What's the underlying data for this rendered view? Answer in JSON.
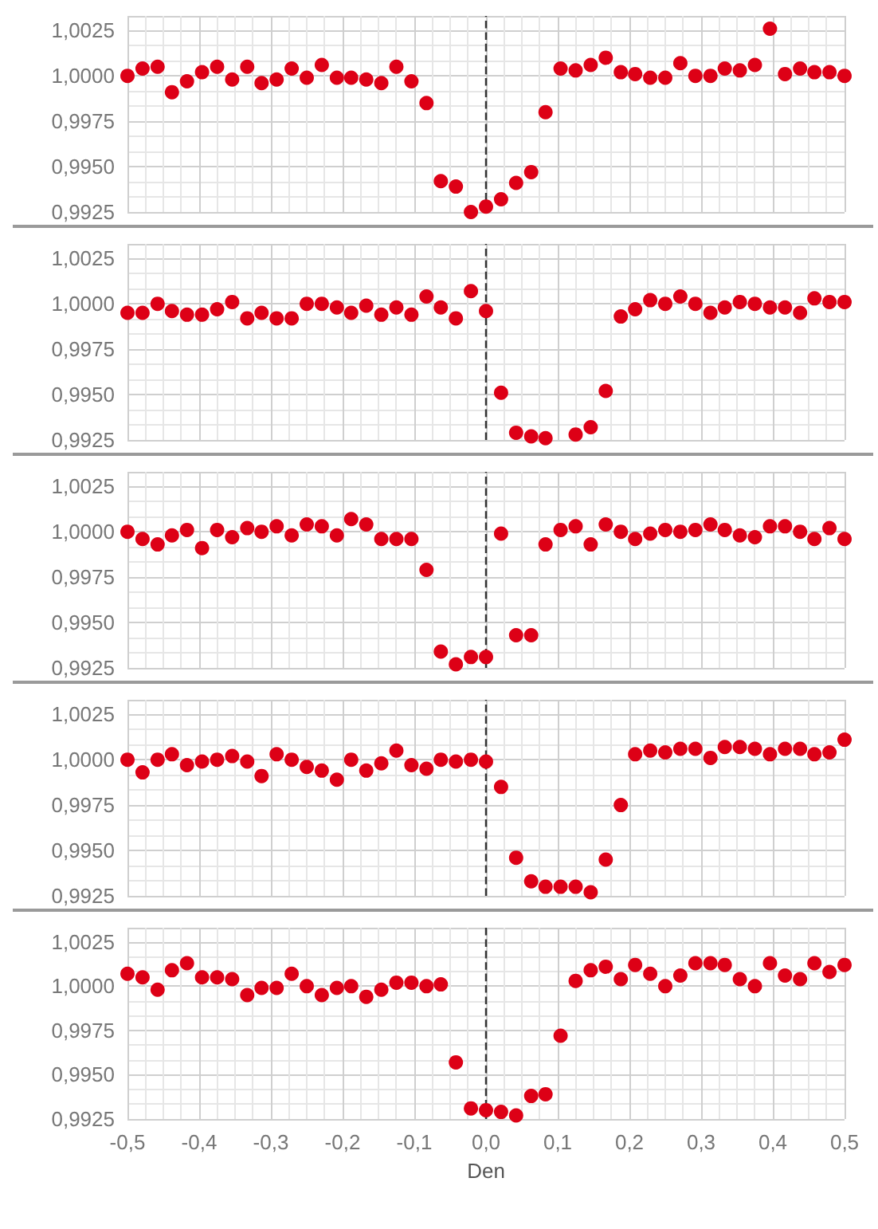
{
  "chart_data": [
    {
      "type": "scatter",
      "x": [
        -0.5,
        -0.479,
        -0.458,
        -0.438,
        -0.417,
        -0.396,
        -0.375,
        -0.354,
        -0.333,
        -0.313,
        -0.292,
        -0.271,
        -0.25,
        -0.229,
        -0.208,
        -0.188,
        -0.167,
        -0.146,
        -0.125,
        -0.104,
        -0.083,
        -0.063,
        -0.042,
        -0.021,
        0,
        0.021,
        0.042,
        0.063,
        0.083,
        0.104,
        0.125,
        0.146,
        0.167,
        0.188,
        0.208,
        0.229,
        0.25,
        0.271,
        0.292,
        0.313,
        0.333,
        0.354,
        0.375,
        0.396,
        0.417,
        0.438,
        0.458,
        0.479,
        0.5
      ],
      "series": [
        {
          "color": "#dd0016",
          "values": [
            1.0,
            1.0004,
            1.0005,
            0.9991,
            0.9997,
            1.0002,
            1.0005,
            0.9998,
            1.0005,
            0.9996,
            0.9998,
            1.0004,
            0.9999,
            1.0006,
            0.9999,
            0.9999,
            0.9998,
            0.9996,
            1.0005,
            0.9997,
            0.9985,
            0.9942,
            0.9939,
            0.9925,
            0.9928,
            0.9932,
            0.9941,
            0.9947,
            0.998,
            1.0004,
            1.0003,
            1.0006,
            1.001,
            1.0002,
            1.0001,
            0.9999,
            0.9999,
            1.0007,
            1.0,
            1.0,
            1.0004,
            1.0003,
            1.0006,
            1.0026,
            1.0001,
            1.0004,
            1.0002,
            1.0002,
            1.0
          ]
        }
      ],
      "xlim": [
        -0.5,
        0.5
      ],
      "xticks": [
        {
          "value": -0.5,
          "label": null
        },
        {
          "value": -0.4,
          "label": null
        },
        {
          "value": -0.3,
          "label": null
        },
        {
          "value": -0.2,
          "label": null
        },
        {
          "value": -0.1,
          "label": null
        },
        {
          "value": 0,
          "label": null
        },
        {
          "value": 0.1,
          "label": null
        },
        {
          "value": 0.2,
          "label": null
        },
        {
          "value": 0.3,
          "label": null
        },
        {
          "value": 0.4,
          "label": null
        },
        {
          "value": 0.5,
          "label": null
        }
      ],
      "ylim": [
        0.9925,
        1.0033
      ],
      "yticks": [
        {
          "value": 0.9925,
          "label": "0,9925"
        },
        {
          "value": 0.995,
          "label": "0,9950"
        },
        {
          "value": 0.9975,
          "label": "0,9975"
        },
        {
          "value": 1,
          "label": "1,0000"
        },
        {
          "value": 1.0025,
          "label": "1,0025"
        }
      ],
      "ref_lines": [
        {
          "axis": "x",
          "value": 0,
          "color": "#333333",
          "line_style": "dashed"
        }
      ],
      "grid": true,
      "marker": "circle",
      "tick_labels": "y"
    },
    {
      "type": "scatter",
      "x": [
        -0.5,
        -0.479,
        -0.458,
        -0.438,
        -0.417,
        -0.396,
        -0.375,
        -0.354,
        -0.333,
        -0.313,
        -0.292,
        -0.271,
        -0.25,
        -0.229,
        -0.208,
        -0.188,
        -0.167,
        -0.146,
        -0.125,
        -0.104,
        -0.083,
        -0.063,
        -0.042,
        -0.021,
        0,
        0.021,
        0.042,
        0.063,
        0.083,
        0.104,
        0.125,
        0.146,
        0.167,
        0.188,
        0.208,
        0.229,
        0.25,
        0.271,
        0.292,
        0.313,
        0.333,
        0.354,
        0.375,
        0.396,
        0.417,
        0.438,
        0.458,
        0.479,
        0.5
      ],
      "series": [
        {
          "color": "#dd0016",
          "values": [
            0.9995,
            0.9995,
            1.0,
            0.9996,
            0.9994,
            0.9994,
            0.9997,
            1.0001,
            0.9992,
            0.9995,
            0.9992,
            0.9992,
            1.0,
            1.0,
            0.9998,
            0.9995,
            0.9999,
            0.9994,
            0.9998,
            0.9994,
            1.0004,
            0.9998,
            0.9992,
            1.0007,
            0.9996,
            0.9951,
            0.9929,
            0.9927,
            0.9926,
            null,
            0.9928,
            0.9932,
            0.9952,
            0.9993,
            0.9997,
            1.0002,
            1.0,
            1.0004,
            1.0,
            0.9995,
            0.9998,
            1.0001,
            1.0,
            0.9998,
            0.9998,
            0.9995,
            1.0003,
            1.0001,
            1.0001
          ]
        }
      ],
      "xlim": [
        -0.5,
        0.5
      ],
      "xticks": [
        {
          "value": -0.5,
          "label": null
        },
        {
          "value": -0.4,
          "label": null
        },
        {
          "value": -0.3,
          "label": null
        },
        {
          "value": -0.2,
          "label": null
        },
        {
          "value": -0.1,
          "label": null
        },
        {
          "value": 0,
          "label": null
        },
        {
          "value": 0.1,
          "label": null
        },
        {
          "value": 0.2,
          "label": null
        },
        {
          "value": 0.3,
          "label": null
        },
        {
          "value": 0.4,
          "label": null
        },
        {
          "value": 0.5,
          "label": null
        }
      ],
      "ylim": [
        0.9925,
        1.0033
      ],
      "yticks": [
        {
          "value": 0.9925,
          "label": "0,9925"
        },
        {
          "value": 0.995,
          "label": "0,9950"
        },
        {
          "value": 0.9975,
          "label": "0,9975"
        },
        {
          "value": 1,
          "label": "1,0000"
        },
        {
          "value": 1.0025,
          "label": "1,0025"
        }
      ],
      "ref_lines": [
        {
          "axis": "x",
          "value": 0,
          "color": "#333333",
          "line_style": "dashed"
        }
      ],
      "grid": true,
      "marker": "circle",
      "tick_labels": "y"
    },
    {
      "type": "scatter",
      "x": [
        -0.5,
        -0.479,
        -0.458,
        -0.438,
        -0.417,
        -0.396,
        -0.375,
        -0.354,
        -0.333,
        -0.313,
        -0.292,
        -0.271,
        -0.25,
        -0.229,
        -0.208,
        -0.188,
        -0.167,
        -0.146,
        -0.125,
        -0.104,
        -0.083,
        -0.063,
        -0.042,
        -0.021,
        0,
        0.021,
        0.042,
        0.063,
        0.083,
        0.104,
        0.125,
        0.146,
        0.167,
        0.188,
        0.208,
        0.229,
        0.25,
        0.271,
        0.292,
        0.313,
        0.333,
        0.354,
        0.375,
        0.396,
        0.417,
        0.438,
        0.458,
        0.479,
        0.5
      ],
      "series": [
        {
          "color": "#dd0016",
          "values": [
            1.0,
            0.9996,
            0.9993,
            0.9998,
            1.0001,
            0.9991,
            1.0001,
            0.9997,
            1.0002,
            1.0,
            1.0003,
            0.9998,
            1.0004,
            1.0003,
            0.9998,
            1.0007,
            1.0004,
            0.9996,
            0.9996,
            0.9996,
            0.9979,
            0.9934,
            0.9927,
            0.9931,
            0.9931,
            0.9999,
            0.9943,
            0.9943,
            0.9993,
            1.0001,
            1.0003,
            0.9993,
            1.0004,
            1.0,
            0.9996,
            0.9999,
            1.0001,
            1.0,
            1.0001,
            1.0004,
            1.0001,
            0.9998,
            0.9997,
            1.0003,
            1.0003,
            1.0,
            0.9996,
            1.0002,
            0.9996
          ]
        }
      ],
      "xlim": [
        -0.5,
        0.5
      ],
      "xticks": [
        {
          "value": -0.5,
          "label": null
        },
        {
          "value": -0.4,
          "label": null
        },
        {
          "value": -0.3,
          "label": null
        },
        {
          "value": -0.2,
          "label": null
        },
        {
          "value": -0.1,
          "label": null
        },
        {
          "value": 0,
          "label": null
        },
        {
          "value": 0.1,
          "label": null
        },
        {
          "value": 0.2,
          "label": null
        },
        {
          "value": 0.3,
          "label": null
        },
        {
          "value": 0.4,
          "label": null
        },
        {
          "value": 0.5,
          "label": null
        }
      ],
      "ylim": [
        0.9925,
        1.0033
      ],
      "yticks": [
        {
          "value": 0.9925,
          "label": "0,9925"
        },
        {
          "value": 0.995,
          "label": "0,9950"
        },
        {
          "value": 0.9975,
          "label": "0,9975"
        },
        {
          "value": 1,
          "label": "1,0000"
        },
        {
          "value": 1.0025,
          "label": "1,0025"
        }
      ],
      "ref_lines": [
        {
          "axis": "x",
          "value": 0,
          "color": "#333333",
          "line_style": "dashed"
        }
      ],
      "grid": true,
      "marker": "circle",
      "tick_labels": "y"
    },
    {
      "type": "scatter",
      "x": [
        -0.5,
        -0.479,
        -0.458,
        -0.438,
        -0.417,
        -0.396,
        -0.375,
        -0.354,
        -0.333,
        -0.313,
        -0.292,
        -0.271,
        -0.25,
        -0.229,
        -0.208,
        -0.188,
        -0.167,
        -0.146,
        -0.125,
        -0.104,
        -0.083,
        -0.063,
        -0.042,
        -0.021,
        0,
        0.021,
        0.042,
        0.063,
        0.083,
        0.104,
        0.125,
        0.146,
        0.167,
        0.188,
        0.208,
        0.229,
        0.25,
        0.271,
        0.292,
        0.313,
        0.333,
        0.354,
        0.375,
        0.396,
        0.417,
        0.438,
        0.458,
        0.479,
        0.5
      ],
      "series": [
        {
          "color": "#dd0016",
          "values": [
            1.0,
            0.9993,
            1.0,
            1.0003,
            0.9997,
            0.9999,
            1.0,
            1.0002,
            0.9999,
            0.9991,
            1.0003,
            1.0,
            0.9996,
            0.9994,
            0.9989,
            1.0,
            0.9994,
            0.9998,
            1.0005,
            0.9997,
            0.9995,
            1.0,
            0.9999,
            1.0,
            0.9999,
            0.9985,
            0.9946,
            0.9933,
            0.993,
            0.993,
            0.993,
            0.9927,
            0.9945,
            0.9975,
            1.0003,
            1.0005,
            1.0004,
            1.0006,
            1.0006,
            1.0001,
            1.0007,
            1.0007,
            1.0006,
            1.0003,
            1.0006,
            1.0006,
            1.0003,
            1.0004,
            1.0011
          ]
        }
      ],
      "xlim": [
        -0.5,
        0.5
      ],
      "xticks": [
        {
          "value": -0.5,
          "label": null
        },
        {
          "value": -0.4,
          "label": null
        },
        {
          "value": -0.3,
          "label": null
        },
        {
          "value": -0.2,
          "label": null
        },
        {
          "value": -0.1,
          "label": null
        },
        {
          "value": 0,
          "label": null
        },
        {
          "value": 0.1,
          "label": null
        },
        {
          "value": 0.2,
          "label": null
        },
        {
          "value": 0.3,
          "label": null
        },
        {
          "value": 0.4,
          "label": null
        },
        {
          "value": 0.5,
          "label": null
        }
      ],
      "ylim": [
        0.9925,
        1.0033
      ],
      "yticks": [
        {
          "value": 0.9925,
          "label": "0,9925"
        },
        {
          "value": 0.995,
          "label": "0,9950"
        },
        {
          "value": 0.9975,
          "label": "0,9975"
        },
        {
          "value": 1,
          "label": "1,0000"
        },
        {
          "value": 1.0025,
          "label": "1,0025"
        }
      ],
      "ref_lines": [
        {
          "axis": "x",
          "value": 0,
          "color": "#333333",
          "line_style": "dashed"
        }
      ],
      "grid": true,
      "marker": "circle",
      "tick_labels": "y"
    },
    {
      "type": "scatter",
      "xlabel": "Den",
      "x": [
        -0.5,
        -0.479,
        -0.458,
        -0.438,
        -0.417,
        -0.396,
        -0.375,
        -0.354,
        -0.333,
        -0.313,
        -0.292,
        -0.271,
        -0.25,
        -0.229,
        -0.208,
        -0.188,
        -0.167,
        -0.146,
        -0.125,
        -0.104,
        -0.083,
        -0.063,
        -0.042,
        -0.021,
        0,
        0.021,
        0.042,
        0.063,
        0.083,
        0.104,
        0.125,
        0.146,
        0.167,
        0.188,
        0.208,
        0.229,
        0.25,
        0.271,
        0.292,
        0.313,
        0.333,
        0.354,
        0.375,
        0.396,
        0.417,
        0.438,
        0.458,
        0.479,
        0.5
      ],
      "series": [
        {
          "color": "#dd0016",
          "values": [
            1.0007,
            1.0005,
            0.9998,
            1.0009,
            1.0013,
            1.0005,
            1.0005,
            1.0004,
            0.9995,
            0.9999,
            0.9999,
            1.0007,
            1.0,
            0.9995,
            0.9999,
            1.0,
            0.9994,
            0.9998,
            1.0002,
            1.0002,
            1.0,
            1.0001,
            0.9957,
            0.9931,
            0.993,
            0.9929,
            0.9927,
            0.9938,
            0.9939,
            0.9972,
            1.0003,
            1.0009,
            1.0011,
            1.0004,
            1.0012,
            1.0007,
            1.0,
            1.0006,
            1.0013,
            1.0013,
            1.0012,
            1.0004,
            1.0,
            1.0013,
            1.0006,
            1.0004,
            1.0013,
            1.0008,
            1.0012
          ]
        }
      ],
      "xlim": [
        -0.5,
        0.5
      ],
      "xticks": [
        {
          "value": -0.5,
          "label": "-0,5"
        },
        {
          "value": -0.4,
          "label": "-0,4"
        },
        {
          "value": -0.3,
          "label": "-0,3"
        },
        {
          "value": -0.2,
          "label": "-0,2"
        },
        {
          "value": -0.1,
          "label": "-0,1"
        },
        {
          "value": 0,
          "label": "0,0"
        },
        {
          "value": 0.1,
          "label": "0,1"
        },
        {
          "value": 0.2,
          "label": "0,2"
        },
        {
          "value": 0.3,
          "label": "0,3"
        },
        {
          "value": 0.4,
          "label": "0,4"
        },
        {
          "value": 0.5,
          "label": "0,5"
        }
      ],
      "ylim": [
        0.9925,
        1.0033
      ],
      "yticks": [
        {
          "value": 0.9925,
          "label": "0,9925"
        },
        {
          "value": 0.995,
          "label": "0,9950"
        },
        {
          "value": 0.9975,
          "label": "0,9975"
        },
        {
          "value": 1,
          "label": "1,0000"
        },
        {
          "value": 1.0025,
          "label": "1,0025"
        }
      ],
      "ref_lines": [
        {
          "axis": "x",
          "value": 0,
          "color": "#333333",
          "line_style": "dashed"
        }
      ],
      "grid": true,
      "marker": "circle"
    }
  ]
}
